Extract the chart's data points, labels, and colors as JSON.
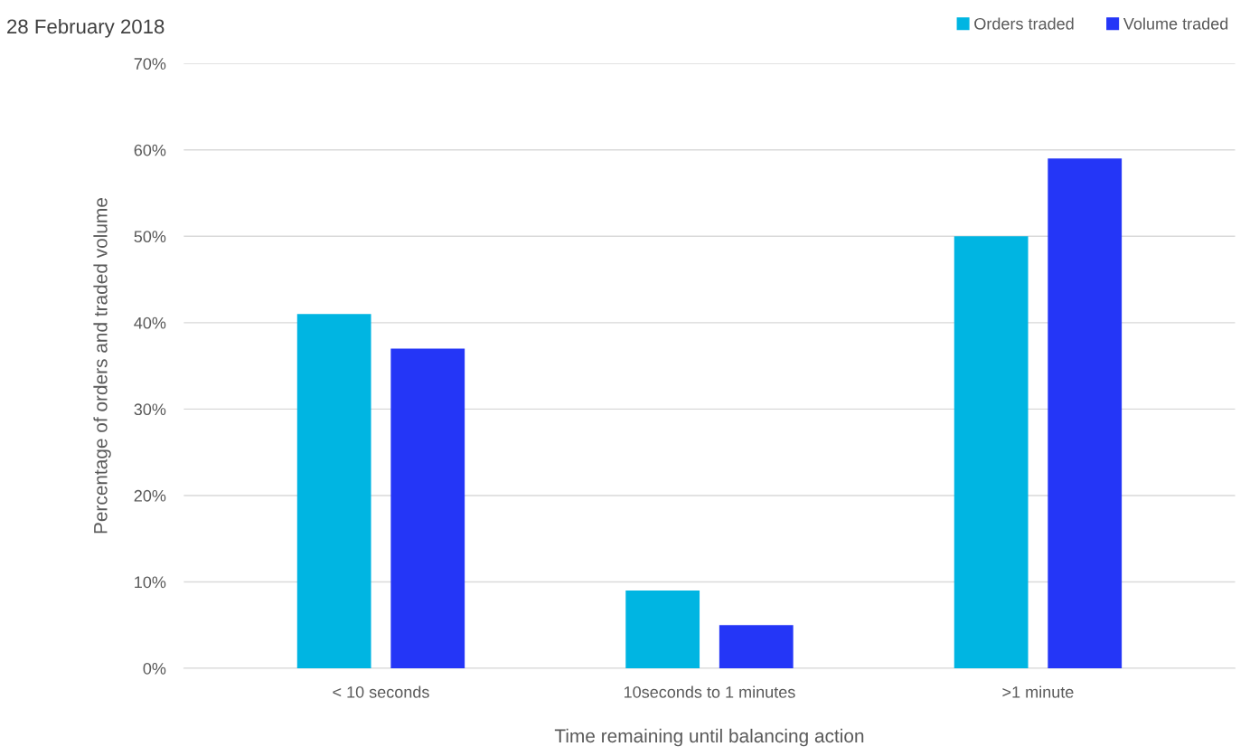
{
  "chart_data": {
    "type": "bar",
    "title": "28 February 2018",
    "xlabel": "Time remaining until balancing action",
    "ylabel": "Percentage of orders and traded volume",
    "categories": [
      "< 10 seconds",
      "10seconds to 1 minutes",
      ">1 minute"
    ],
    "series": [
      {
        "name": "Orders traded",
        "color": "#00b5e2",
        "values": [
          41,
          9,
          50
        ]
      },
      {
        "name": "Volume traded",
        "color": "#2436f7",
        "values": [
          37,
          5,
          59
        ]
      }
    ],
    "ylim": [
      0,
      70
    ],
    "yticks": [
      {
        "value": 0,
        "label": "0%"
      },
      {
        "value": 10,
        "label": "10%"
      },
      {
        "value": 20,
        "label": "20%"
      },
      {
        "value": 30,
        "label": "30%"
      },
      {
        "value": 40,
        "label": "40%"
      },
      {
        "value": 50,
        "label": "50%"
      },
      {
        "value": 60,
        "label": "60%"
      },
      {
        "value": 70,
        "label": "70%"
      }
    ],
    "grid": "y",
    "legend": "top right"
  }
}
